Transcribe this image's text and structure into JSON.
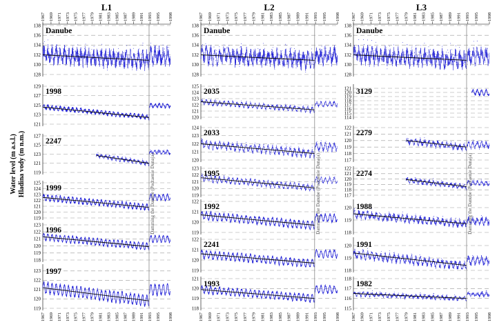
{
  "figure": {
    "ylabel_en": "Water level (m a.s.l.)",
    "ylabel_sk": "Hladina vody (m n.m.)",
    "damming_note": "Damming the Danube (Podtaenie Dunaja)",
    "x_ticks": [
      "1967",
      "1969",
      "1971",
      "1973",
      "1975",
      "1977",
      "1979",
      "1981",
      "1983",
      "1985",
      "1987",
      "1989",
      "1991",
      "1993",
      "1995",
      "1998"
    ]
  },
  "chart_data": [
    {
      "type": "line",
      "title": "L1",
      "x_range": [
        1967,
        1998
      ],
      "damming_year": 1992.8,
      "series_color": "#1f1fd6",
      "trend_color": "#000000",
      "panels": [
        {
          "name": "Danube",
          "y_ticks": [
            128,
            130,
            132,
            134,
            136,
            138
          ],
          "ylim": [
            128,
            138
          ],
          "start": 1967,
          "pre_mean": 132,
          "post_mean": 131.8,
          "amp": 1.0,
          "noise": 1.3,
          "scatter": true,
          "trend": [
            [
              1967,
              132.0
            ],
            [
              1992.8,
              130.9
            ]
          ]
        },
        {
          "name": "1998",
          "y_ticks": [
            121,
            123,
            125,
            127,
            129
          ],
          "ylim": [
            121,
            129
          ],
          "start": 1967,
          "pre_mean": 124.7,
          "post_mean": 124.9,
          "amp": 0.4,
          "noise": 0.25,
          "scatter": false,
          "trend": [
            [
              1967,
              124.6
            ],
            [
              1992.8,
              122.4
            ]
          ]
        },
        {
          "name": "2247",
          "y_ticks": [
            119,
            121,
            123,
            125,
            127
          ],
          "ylim": [
            119,
            127
          ],
          "start": 1980,
          "pre_mean": 122.6,
          "post_mean": 123.4,
          "amp": 0.35,
          "noise": 0.3,
          "scatter": true,
          "trend": [
            [
              1980,
              122.7
            ],
            [
              1992.8,
              121.0
            ]
          ]
        },
        {
          "name": "1999",
          "y_ticks": [
            119,
            120,
            121,
            122,
            123,
            124,
            125
          ],
          "ylim": [
            119,
            125
          ],
          "start": 1967,
          "pre_mean": 122.5,
          "post_mean": 122.5,
          "amp": 0.45,
          "noise": 0.2,
          "scatter": false,
          "trend": [
            [
              1967,
              122.5
            ],
            [
              1992.8,
              120.8
            ]
          ]
        },
        {
          "name": "1996",
          "y_ticks": [
            118,
            119,
            120,
            121,
            122,
            123
          ],
          "ylim": [
            118,
            123
          ],
          "start": 1967,
          "pre_mean": 121.3,
          "post_mean": 121.0,
          "amp": 0.45,
          "noise": 0.15,
          "scatter": false,
          "trend": [
            [
              1967,
              121.3
            ],
            [
              1992.8,
              119.9
            ]
          ]
        },
        {
          "name": "1997",
          "y_ticks": [
            119,
            120,
            121,
            122,
            123
          ],
          "ylim": [
            119,
            123.5
          ],
          "start": 1967,
          "pre_mean": 121.2,
          "post_mean": 121.0,
          "amp": 0.55,
          "noise": 0.15,
          "scatter": false,
          "trend": [
            [
              1967,
              121.2
            ],
            [
              1992.8,
              119.8
            ]
          ]
        }
      ]
    },
    {
      "type": "line",
      "title": "L2",
      "x_range": [
        1967,
        1998
      ],
      "damming_year": 1992.8,
      "series_color": "#1f1fd6",
      "trend_color": "#000000",
      "panels": [
        {
          "name": "Danube",
          "y_ticks": [
            128,
            130,
            132,
            134,
            136,
            138
          ],
          "ylim": [
            128,
            138
          ],
          "start": 1967,
          "pre_mean": 132,
          "post_mean": 131.8,
          "amp": 1.0,
          "noise": 1.3,
          "scatter": true,
          "trend": [
            [
              1967,
              132.0
            ],
            [
              1992.8,
              130.9
            ]
          ]
        },
        {
          "name": "2035",
          "y_ticks": [
            120,
            121,
            122,
            123,
            124,
            125
          ],
          "ylim": [
            120,
            125
          ],
          "start": 1967,
          "pre_mean": 122.4,
          "post_mean": 122.1,
          "amp": 0.35,
          "noise": 0.2,
          "scatter": true,
          "trend": [
            [
              1967,
              122.5
            ],
            [
              1992.8,
              121.2
            ]
          ]
        },
        {
          "name": "2033",
          "y_ticks": [
            120,
            121,
            122,
            123,
            124
          ],
          "ylim": [
            120,
            124
          ],
          "start": 1967,
          "pre_mean": 121.9,
          "post_mean": 121.6,
          "amp": 0.4,
          "noise": 0.25,
          "scatter": true,
          "trend": [
            [
              1967,
              122.0
            ],
            [
              1992.8,
              120.8
            ]
          ]
        },
        {
          "name": "1995",
          "y_ticks": [
            119,
            120,
            121,
            122,
            123
          ],
          "ylim": [
            119,
            123
          ],
          "start": 1967,
          "pre_mean": 121.5,
          "post_mean": 121.2,
          "amp": 0.4,
          "noise": 0.2,
          "scatter": true,
          "trend": [
            [
              1967,
              121.6
            ],
            [
              1992.8,
              120.1
            ]
          ]
        },
        {
          "name": "1992",
          "y_ticks": [
            119,
            120,
            121,
            122
          ],
          "ylim": [
            119,
            122
          ],
          "start": 1967,
          "pre_mean": 120.6,
          "post_mean": 120.4,
          "amp": 0.35,
          "noise": 0.12,
          "scatter": false,
          "trend": [
            [
              1967,
              120.7
            ],
            [
              1992.8,
              119.7
            ]
          ]
        },
        {
          "name": "2241",
          "y_ticks": [
            119,
            120,
            121,
            122
          ],
          "ylim": [
            119,
            122
          ],
          "start": 1967,
          "pre_mean": 120.5,
          "post_mean": 120.6,
          "amp": 0.35,
          "noise": 0.12,
          "scatter": false,
          "trend": [
            [
              1967,
              120.6
            ],
            [
              1992.8,
              119.7
            ]
          ]
        },
        {
          "name": "1993",
          "y_ticks": [
            118,
            119,
            120,
            121
          ],
          "ylim": [
            118,
            121
          ],
          "start": 1967,
          "pre_mean": 119.9,
          "post_mean": 119.9,
          "amp": 0.35,
          "noise": 0.12,
          "scatter": false,
          "trend": [
            [
              1967,
              119.9
            ],
            [
              1992.8,
              119.0
            ]
          ]
        }
      ]
    },
    {
      "type": "line",
      "title": "L3",
      "x_range": [
        1967,
        1998
      ],
      "damming_year": 1992.8,
      "series_color": "#1f1fd6",
      "trend_color": "#000000",
      "panels": [
        {
          "name": "Danube",
          "y_ticks": [
            128,
            130,
            132,
            134,
            136,
            138
          ],
          "ylim": [
            128,
            138
          ],
          "start": 1967,
          "pre_mean": 132,
          "post_mean": 131.8,
          "amp": 1.0,
          "noise": 1.3,
          "scatter": true,
          "trend": [
            [
              1967,
              132.0
            ],
            [
              1992.8,
              130.9
            ]
          ]
        },
        {
          "name": "3129",
          "y_ticks": [
            114,
            115,
            116,
            117,
            118,
            119,
            120,
            121
          ],
          "ylim": [
            114,
            121.5
          ],
          "start": 1994,
          "pre_mean": 120.0,
          "post_mean": 120.0,
          "amp": 0.6,
          "noise": 0.3,
          "scatter": false,
          "trend": null
        },
        {
          "name": "2279",
          "y_ticks": [
            117,
            118,
            119,
            120,
            121,
            122
          ],
          "ylim": [
            117,
            122
          ],
          "start": 1979,
          "pre_mean": 119.8,
          "post_mean": 119.3,
          "amp": 0.35,
          "noise": 0.3,
          "scatter": true,
          "trend": [
            [
              1979,
              120.0
            ],
            [
              1992.8,
              119.0
            ]
          ]
        },
        {
          "name": "2274",
          "y_ticks": [
            117,
            118,
            119,
            120,
            121,
            122
          ],
          "ylim": [
            117,
            122
          ],
          "start": 1979,
          "pre_mean": 119.7,
          "post_mean": 119.2,
          "amp": 0.35,
          "noise": 0.3,
          "scatter": true,
          "trend": [
            [
              1979,
              119.9
            ],
            [
              1992.8,
              118.6
            ]
          ]
        },
        {
          "name": "1988",
          "y_ticks": [
            118,
            119,
            120
          ],
          "ylim": [
            118,
            120.5
          ],
          "start": 1967,
          "pre_mean": 119.4,
          "post_mean": 118.9,
          "amp": 0.2,
          "noise": 0.2,
          "scatter": true,
          "trend": [
            [
              1967,
              119.5
            ],
            [
              1992.8,
              118.7
            ]
          ]
        },
        {
          "name": "1991",
          "y_ticks": [
            118,
            119,
            120
          ],
          "ylim": [
            118,
            120.5
          ],
          "start": 1967,
          "pre_mean": 119.2,
          "post_mean": 118.8,
          "amp": 0.25,
          "noise": 0.2,
          "scatter": true,
          "trend": [
            [
              1967,
              119.4
            ],
            [
              1992.8,
              118.4
            ]
          ]
        },
        {
          "name": "1982",
          "y_ticks": [
            115,
            116,
            117,
            118
          ],
          "ylim": [
            115,
            118
          ],
          "start": 1967,
          "pre_mean": 116.4,
          "post_mean": 116.4,
          "amp": 0.15,
          "noise": 0.15,
          "scatter": true,
          "trend": [
            [
              1967,
              116.5
            ],
            [
              1992.8,
              116.0
            ]
          ]
        }
      ]
    }
  ]
}
